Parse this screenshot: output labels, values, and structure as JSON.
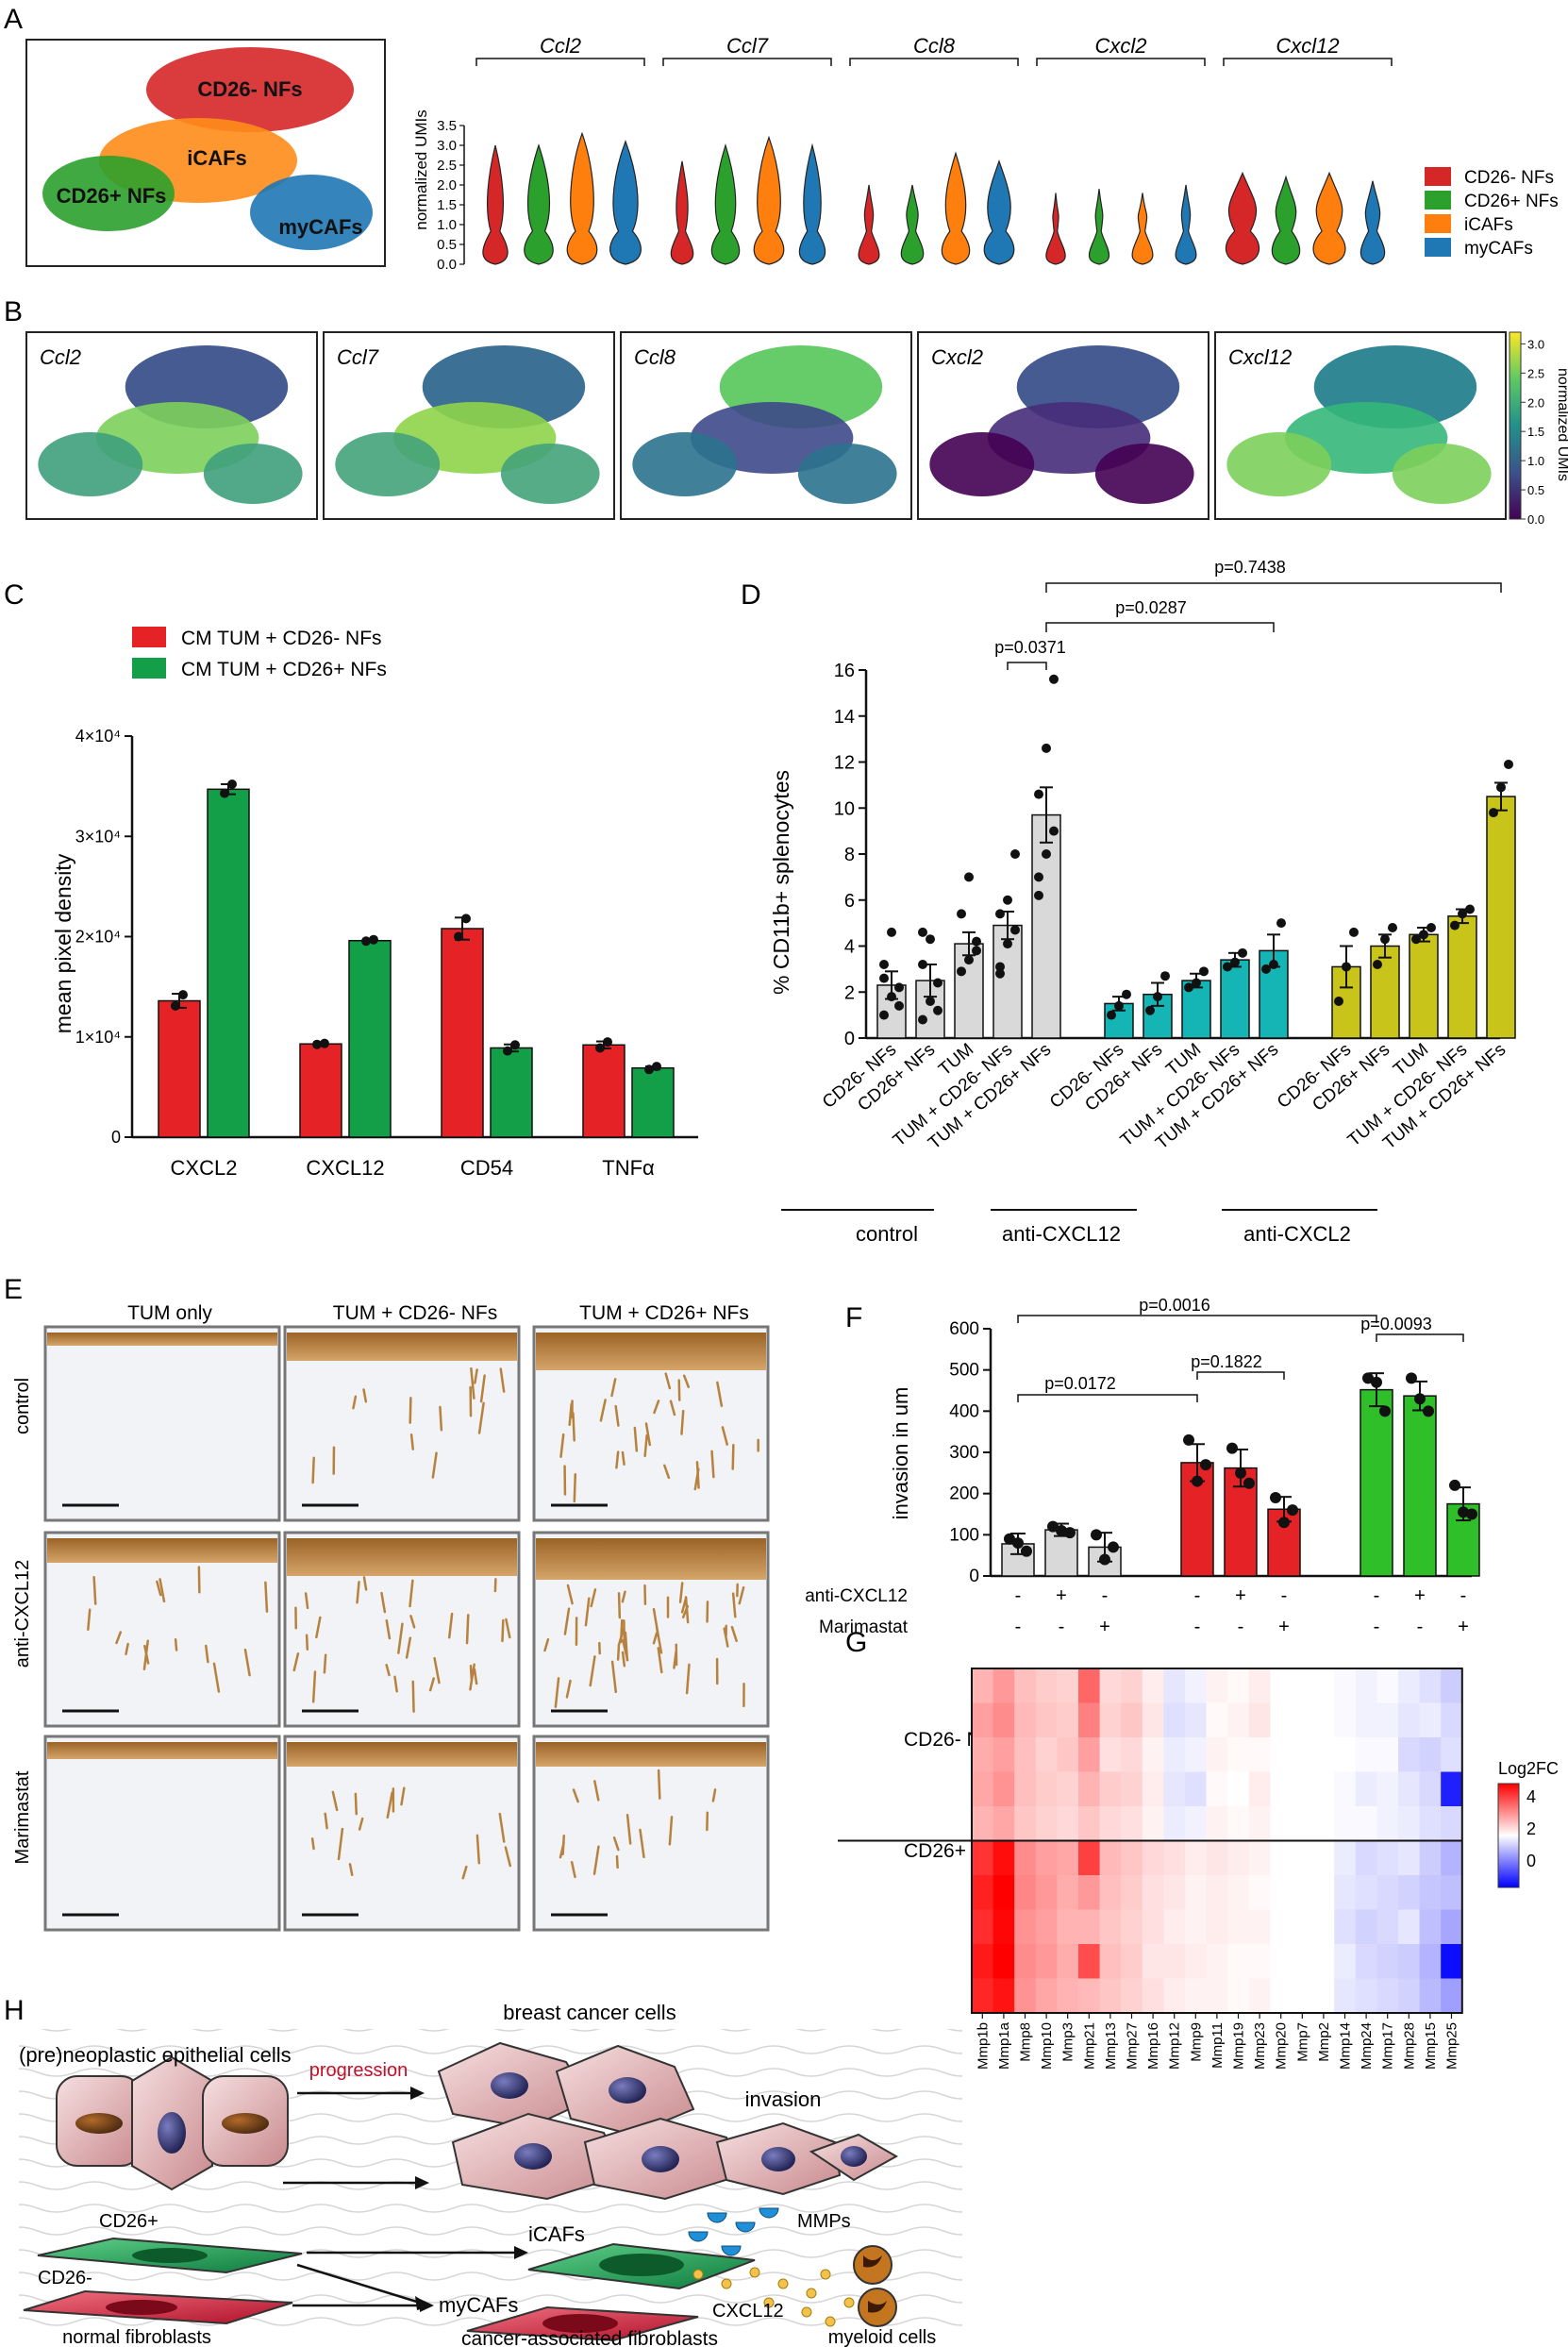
{
  "panel_letters": [
    "A",
    "B",
    "C",
    "D",
    "E",
    "F",
    "G",
    "H"
  ],
  "panelA": {
    "umap_clusters": [
      "CD26- NFs",
      "iCAFs",
      "CD26+ NFs",
      "myCAFs"
    ],
    "genes": [
      "Ccl2",
      "Ccl7",
      "Ccl8",
      "Cxcl2",
      "Cxcl12"
    ],
    "ylabel": "normalized UMIs",
    "yticks": [
      "0.0",
      "0.5",
      "1.0",
      "1.5",
      "2.0",
      "2.5",
      "3.0",
      "3.5"
    ],
    "legend": [
      {
        "label": "CD26- NFs",
        "color": "#d62728"
      },
      {
        "label": "CD26+ NFs",
        "color": "#2ca02c"
      },
      {
        "label": "iCAFs",
        "color": "#ff7f0e"
      },
      {
        "label": "myCAFs",
        "color": "#1f77b4"
      }
    ]
  },
  "panelB": {
    "genes": [
      "Ccl2",
      "Ccl7",
      "Ccl8",
      "Cxcl2",
      "Cxcl12"
    ],
    "colorbar_label": "normalized UMIs",
    "colorbar_ticks": [
      "0.0",
      "0.5",
      "1.0",
      "1.5",
      "2.0",
      "2.5",
      "3.0"
    ]
  },
  "panelE": {
    "columns": [
      "TUM only",
      "TUM + CD26- NFs",
      "TUM + CD26+ NFs"
    ],
    "rows": [
      "control",
      "anti-CXCL12",
      "Marimastat"
    ]
  },
  "panelF": {
    "ylabel": "invasion in um",
    "yticks": [
      "0",
      "100",
      "200",
      "300",
      "400",
      "500",
      "600"
    ],
    "treatment_rows": [
      {
        "label": "anti-CXCL12",
        "marks": [
          "-",
          "+",
          "-",
          "-",
          "+",
          "-",
          "-",
          "+",
          "-"
        ]
      },
      {
        "label": "Marimastat",
        "marks": [
          "-",
          "-",
          "+",
          "-",
          "-",
          "+",
          "-",
          "-",
          "+"
        ]
      }
    ],
    "pvalues": [
      "p=0.0016",
      "p=0.0172",
      "p=0.1822",
      "p=0.0093"
    ]
  },
  "panelG": {
    "row_groups": [
      "CD26- NFs",
      "CD26+ NFs"
    ],
    "genes": [
      "Mmp1b",
      "Mmp1a",
      "Mmp8",
      "Mmp10",
      "Mmp3",
      "Mmp21",
      "Mmp13",
      "Mmp27",
      "Mmp16",
      "Mmp12",
      "Mmp9",
      "Mmp11",
      "Mmp19",
      "Mmp23",
      "Mmp20",
      "Mmp7",
      "Mmp2",
      "Mmp14",
      "Mmp24",
      "Mmp17",
      "Mmp28",
      "Mmp15",
      "Mmp25"
    ],
    "legend_title": "Log2FC",
    "legend_ticks": [
      "4",
      "2",
      "0"
    ]
  },
  "panelH": {
    "labels": {
      "epithelial": "(pre)neoplastic epithelial cells",
      "progression": "progression",
      "breast_cancer": "breast cancer cells",
      "invasion": "invasion",
      "mmps": "MMPs",
      "cd26pos": "CD26+",
      "cd26neg": "CD26-",
      "icafs": "iCAFs",
      "mycafs": "myCAFs",
      "cxcl12": "CXCL12",
      "normal_fib": "normal fibroblasts",
      "caf": "cancer-associated fibroblasts",
      "myeloid": "myeloid cells"
    }
  },
  "chart_data": [
    {
      "panel": "C",
      "type": "bar",
      "categories": [
        "CXCL2",
        "CXCL12",
        "CD54",
        "TNFα"
      ],
      "series": [
        {
          "name": "CM TUM + CD26- NFs",
          "color": "#e52225",
          "values": [
            13600,
            9300,
            20800,
            9200
          ],
          "sem": [
            700,
            150,
            1100,
            350
          ],
          "points": [
            [
              13100,
              14200
            ],
            [
              9250,
              9350
            ],
            [
              20000,
              21800
            ],
            [
              8900,
              9500
            ]
          ]
        },
        {
          "name": "CM TUM + CD26+ NFs",
          "color": "#129f47",
          "values": [
            34700,
            19600,
            8900,
            6900
          ],
          "sem": [
            500,
            100,
            350,
            150
          ],
          "points": [
            [
              34300,
              35200
            ],
            [
              19550,
              19700
            ],
            [
              8600,
              9200
            ],
            [
              6750,
              7050
            ]
          ]
        }
      ],
      "ylabel": "mean pixel density",
      "ytick_labels": [
        "0",
        "1×10⁴",
        "2×10⁴",
        "3×10⁴",
        "4×10⁴"
      ],
      "ylim": [
        0,
        40000
      ]
    },
    {
      "panel": "D",
      "type": "bar",
      "categories": [
        "CD26- NFs",
        "CD26+ NFs",
        "TUM",
        "TUM + CD26- NFs",
        "TUM + CD26+ NFs"
      ],
      "groups": [
        "control",
        "anti-CXCL12",
        "anti-CXCL2"
      ],
      "group_colors": [
        "#d9d9d9",
        "#15b5b5",
        "#c9c41a"
      ],
      "series": [
        {
          "name": "control",
          "values": [
            2.3,
            2.5,
            4.1,
            4.9,
            9.7
          ],
          "sem": [
            0.6,
            0.7,
            0.5,
            0.6,
            1.2
          ],
          "points": [
            [
              1.0,
              1.8,
              2.2,
              3.2,
              4.6,
              1.4,
              2.6
            ],
            [
              0.8,
              1.6,
              2.4,
              3.2,
              4.3,
              1.2,
              4.6
            ],
            [
              2.9,
              3.4,
              4.2,
              5.4,
              7.0,
              3.8
            ],
            [
              3.1,
              4.1,
              4.7,
              5.4,
              6.0,
              8.0,
              2.8
            ],
            [
              7.0,
              8.0,
              9.0,
              10.6,
              12.6,
              15.6,
              6.2
            ]
          ]
        },
        {
          "name": "anti-CXCL12",
          "values": [
            1.5,
            1.9,
            2.5,
            3.4,
            3.8
          ],
          "sem": [
            0.3,
            0.5,
            0.3,
            0.3,
            0.7
          ],
          "points": [
            [
              1.0,
              1.4,
              1.9
            ],
            [
              1.2,
              1.8,
              2.7
            ],
            [
              2.2,
              2.4,
              2.9
            ],
            [
              3.1,
              3.3,
              3.7
            ],
            [
              3.0,
              3.2,
              5.0
            ]
          ]
        },
        {
          "name": "anti-CXCL2",
          "values": [
            3.1,
            4.0,
            4.5,
            5.3,
            10.5
          ],
          "sem": [
            0.9,
            0.5,
            0.3,
            0.3,
            0.6
          ],
          "points": [
            [
              1.6,
              3.1,
              4.6
            ],
            [
              3.2,
              4.3,
              4.8
            ],
            [
              4.3,
              4.5,
              4.8
            ],
            [
              4.9,
              5.4,
              5.6
            ],
            [
              9.8,
              10.9,
              11.9
            ]
          ]
        }
      ],
      "ylabel": "% CD11b+ splenocytes",
      "ylim": [
        0,
        16
      ],
      "yticks": [
        0,
        2,
        4,
        6,
        8,
        10,
        12,
        14,
        16
      ],
      "pvalues": [
        "p=0.0371",
        "p=0.0287",
        "p=0.7438"
      ]
    },
    {
      "panel": "F",
      "type": "bar",
      "categories": [
        "TUM",
        "TUM+anti-CXCL12",
        "TUM+Marimastat",
        "CD26-",
        "CD26-+anti-CXCL12",
        "CD26-+Marimastat",
        "CD26+",
        "CD26++anti-CXCL12",
        "CD26++Marimastat"
      ],
      "colors": [
        "#d9d9d9",
        "#d9d9d9",
        "#d9d9d9",
        "#e52225",
        "#e52225",
        "#e52225",
        "#2fbf28",
        "#2fbf28",
        "#2fbf28"
      ],
      "values": [
        78,
        112,
        70,
        275,
        262,
        162,
        452,
        437,
        175
      ],
      "sem": [
        25,
        15,
        35,
        45,
        45,
        30,
        40,
        35,
        40
      ],
      "points": [
        [
          90,
          80,
          60
        ],
        [
          120,
          110,
          105
        ],
        [
          100,
          40,
          70
        ],
        [
          330,
          230,
          270
        ],
        [
          310,
          250,
          225
        ],
        [
          190,
          130,
          160
        ],
        [
          480,
          470,
          400
        ],
        [
          480,
          430,
          400
        ],
        [
          220,
          155,
          150
        ]
      ],
      "ylabel": "invasion in um",
      "ylim": [
        0,
        600
      ]
    },
    {
      "panel": "G",
      "type": "heatmap",
      "rows": 10,
      "columns": [
        "Mmp1b",
        "Mmp1a",
        "Mmp8",
        "Mmp10",
        "Mmp3",
        "Mmp21",
        "Mmp13",
        "Mmp27",
        "Mmp16",
        "Mmp12",
        "Mmp9",
        "Mmp11",
        "Mmp19",
        "Mmp23",
        "Mmp20",
        "Mmp7",
        "Mmp2",
        "Mmp14",
        "Mmp24",
        "Mmp17",
        "Mmp28",
        "Mmp15",
        "Mmp25"
      ],
      "values": [
        [
          1.2,
          1.6,
          1.0,
          0.8,
          0.7,
          2.4,
          0.6,
          0.7,
          0.3,
          -0.4,
          -0.2,
          0.2,
          0.1,
          0.3,
          0,
          0,
          0,
          -0.1,
          -0.2,
          -0.1,
          -0.3,
          -0.5,
          -0.8
        ],
        [
          1.5,
          1.8,
          1.1,
          0.9,
          0.8,
          2.0,
          0.7,
          0.9,
          0.4,
          -0.5,
          -0.4,
          0.1,
          0.2,
          0.4,
          0,
          0,
          0,
          -0.1,
          -0.2,
          -0.2,
          -0.4,
          -0.3,
          -0.6
        ],
        [
          1.3,
          1.5,
          1.0,
          0.7,
          0.9,
          1.5,
          0.5,
          0.6,
          0.2,
          -0.3,
          -0.2,
          0.2,
          0.1,
          0.1,
          0,
          0,
          0,
          0,
          -0.1,
          -0.1,
          -0.6,
          -0.7,
          -0.5
        ],
        [
          1.4,
          1.7,
          1.0,
          0.8,
          0.7,
          1.2,
          0.8,
          0.7,
          0.3,
          -0.4,
          -0.5,
          0.1,
          0.0,
          0.3,
          0,
          0,
          0,
          -0.1,
          -0.3,
          -0.2,
          -0.4,
          -0.6,
          -3.5
        ],
        [
          1.2,
          1.4,
          0.9,
          0.7,
          0.6,
          0.9,
          0.6,
          0.5,
          0.2,
          -0.3,
          -0.2,
          0.2,
          0.1,
          0.2,
          0,
          0,
          0,
          -0.1,
          -0.1,
          -0.2,
          -0.3,
          -0.5,
          -0.6
        ],
        [
          3.2,
          3.8,
          1.8,
          1.5,
          1.4,
          3.0,
          1.1,
          0.9,
          0.6,
          0.5,
          0.3,
          0.4,
          0.3,
          0.2,
          0,
          0,
          0,
          -0.3,
          -0.6,
          -0.5,
          -0.4,
          -0.8,
          -1.2
        ],
        [
          3.5,
          4.1,
          1.9,
          1.6,
          1.3,
          1.6,
          1.0,
          0.8,
          0.5,
          0.4,
          0.2,
          0.3,
          0.2,
          0.1,
          0,
          0,
          0,
          -0.4,
          -0.5,
          -0.6,
          -0.7,
          -0.9,
          -1.0
        ],
        [
          3.3,
          3.9,
          1.7,
          1.5,
          1.2,
          1.2,
          0.9,
          0.7,
          0.5,
          0.3,
          0.2,
          0.3,
          0.2,
          0.2,
          0,
          0,
          0,
          -0.5,
          -0.7,
          -0.6,
          -0.4,
          -1.0,
          -1.4
        ],
        [
          3.6,
          4.0,
          1.8,
          1.6,
          1.3,
          2.8,
          1.0,
          0.8,
          0.4,
          0.4,
          0.3,
          0.2,
          0.1,
          0.1,
          0,
          0,
          0,
          -0.3,
          -0.6,
          -0.7,
          -0.8,
          -1.2,
          -3.8
        ],
        [
          3.4,
          3.7,
          1.7,
          1.4,
          1.2,
          1.1,
          0.9,
          0.7,
          0.5,
          0.3,
          0.2,
          0.2,
          0.1,
          0.2,
          0,
          0,
          0,
          -0.4,
          -0.5,
          -0.6,
          -0.7,
          -1.1,
          -1.5
        ]
      ],
      "zlim": [
        -4,
        4
      ]
    }
  ]
}
